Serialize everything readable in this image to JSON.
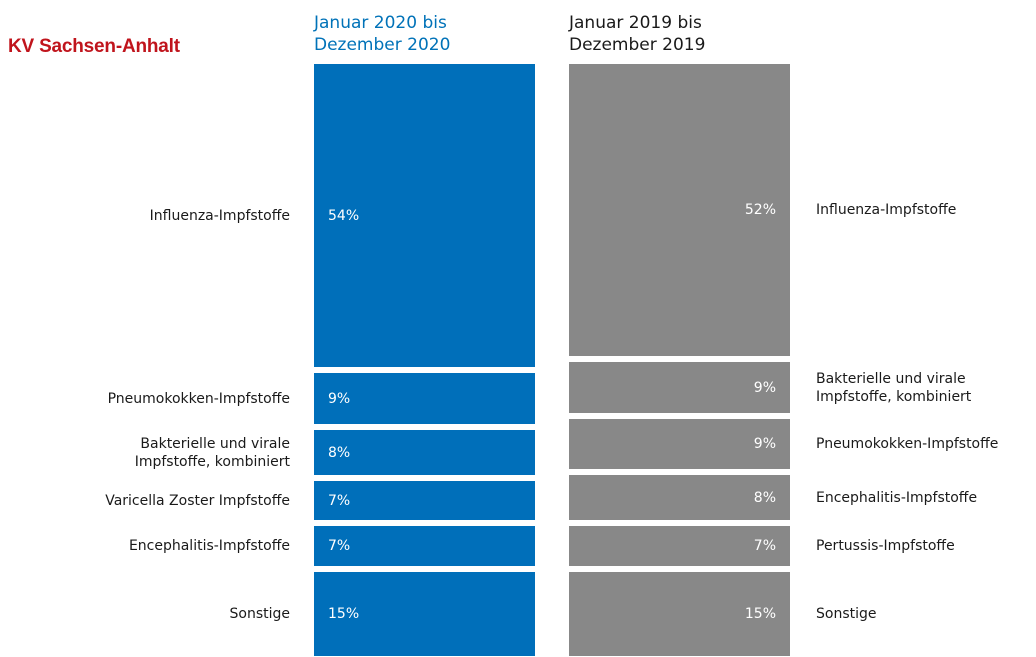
{
  "brand": "KV Sachsen-Anhalt",
  "colors": {
    "brand": "#c0141c",
    "left_bar": "#006fba",
    "right_bar": "#888888",
    "left_header": "#0072b8"
  },
  "chart_data": {
    "type": "bar",
    "stacked": true,
    "orientation": "vertical",
    "columns": [
      {
        "name": "Januar 2020 bis Dezember 2020",
        "header_lines": [
          "Januar 2020 bis",
          "Dezember 2020"
        ],
        "color": "#006fba",
        "segments": [
          {
            "label": "Influenza-Impfstoffe",
            "label_lines": [
              "Influenza-Impfstoffe"
            ],
            "value": 54,
            "text": "54%"
          },
          {
            "label": "Pneumokokken-Impfstoffe",
            "label_lines": [
              "Pneumokokken-Impfstoffe"
            ],
            "value": 9,
            "text": "9%"
          },
          {
            "label": "Bakterielle und virale Impfstoffe, kombiniert",
            "label_lines": [
              "Bakterielle und virale",
              "Impfstoffe, kombiniert"
            ],
            "value": 8,
            "text": "8%"
          },
          {
            "label": "Varicella Zoster Impfstoffe",
            "label_lines": [
              "Varicella Zoster Impfstoffe"
            ],
            "value": 7,
            "text": "7%"
          },
          {
            "label": "Encephalitis-Impfstoffe",
            "label_lines": [
              "Encephalitis-Impfstoffe"
            ],
            "value": 7,
            "text": "7%"
          },
          {
            "label": "Sonstige",
            "label_lines": [
              "Sonstige"
            ],
            "value": 15,
            "text": "15%"
          }
        ]
      },
      {
        "name": "Januar 2019 bis Dezember 2019",
        "header_lines": [
          "Januar 2019 bis",
          "Dezember 2019"
        ],
        "color": "#888888",
        "segments": [
          {
            "label": "Influenza-Impfstoffe",
            "label_lines": [
              "Influenza-Impfstoffe"
            ],
            "value": 52,
            "text": "52%"
          },
          {
            "label": "Bakterielle und virale Impfstoffe, kombiniert",
            "label_lines": [
              "Bakterielle und virale",
              "Impfstoffe, kombiniert"
            ],
            "value": 9,
            "text": "9%"
          },
          {
            "label": "Pneumokokken-Impfstoffe",
            "label_lines": [
              "Pneumokokken-Impfstoffe"
            ],
            "value": 9,
            "text": "9%"
          },
          {
            "label": "Encephalitis-Impfstoffe",
            "label_lines": [
              "Encephalitis-Impfstoffe"
            ],
            "value": 8,
            "text": "8%"
          },
          {
            "label": "Pertussis-Impfstoffe",
            "label_lines": [
              "Pertussis-Impfstoffe"
            ],
            "value": 7,
            "text": "7%"
          },
          {
            "label": "Sonstige",
            "label_lines": [
              "Sonstige"
            ],
            "value": 15,
            "text": "15%"
          }
        ]
      }
    ]
  }
}
